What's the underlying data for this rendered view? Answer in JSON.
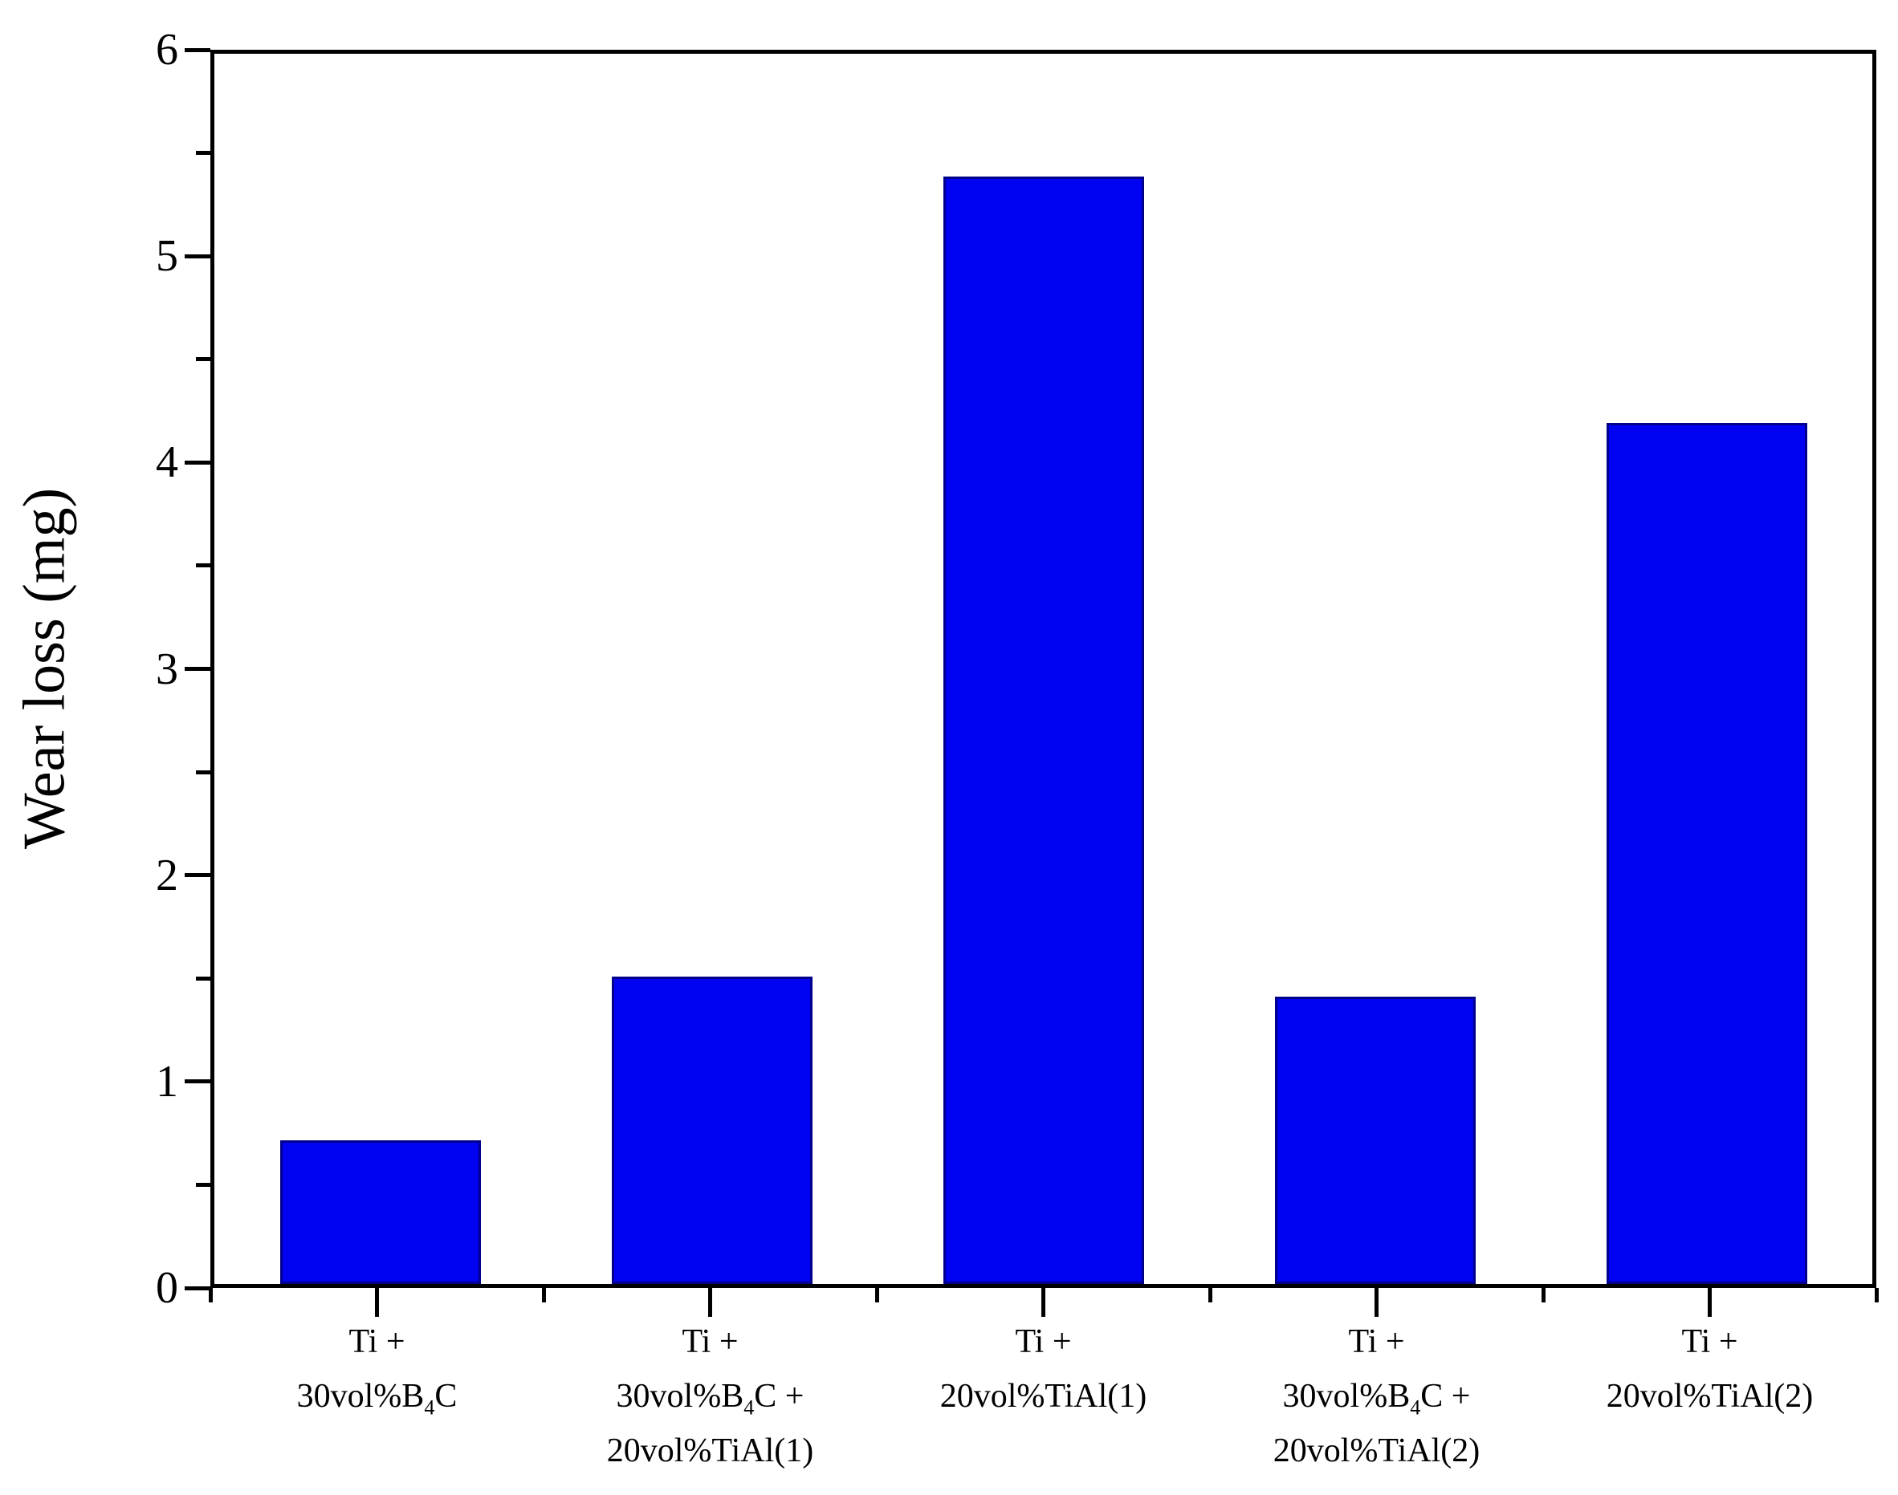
{
  "chart_data": {
    "type": "bar",
    "title": "",
    "xlabel": "",
    "ylabel": "Wear loss (mg)",
    "ylim": [
      0,
      6
    ],
    "y_major_tick_step": 1,
    "y_minor_tick_step": 0.5,
    "y_tick_labels": [
      "0",
      "1",
      "2",
      "3",
      "4",
      "5",
      "6"
    ],
    "categories": [
      {
        "lines": [
          "Ti +",
          "30vol%B₄C"
        ]
      },
      {
        "lines": [
          "Ti +",
          "30vol%B₄C +",
          "20vol%TiAl(1)"
        ]
      },
      {
        "lines": [
          "Ti +",
          "20vol%TiAl(1)"
        ]
      },
      {
        "lines": [
          "Ti +",
          "30vol%B₄C +",
          "20vol%TiAl(2)"
        ]
      },
      {
        "lines": [
          "Ti +",
          "20vol%TiAl(2)"
        ]
      }
    ],
    "values": [
      0.7,
      1.5,
      5.4,
      1.4,
      4.2
    ],
    "grid": false,
    "legend_position": "none",
    "frame": "full-box",
    "colors": {
      "bar_fill": "#0202f2",
      "bar_border": "#00008b",
      "axis": "#000000",
      "text": "#000000",
      "background": "#ffffff"
    }
  }
}
